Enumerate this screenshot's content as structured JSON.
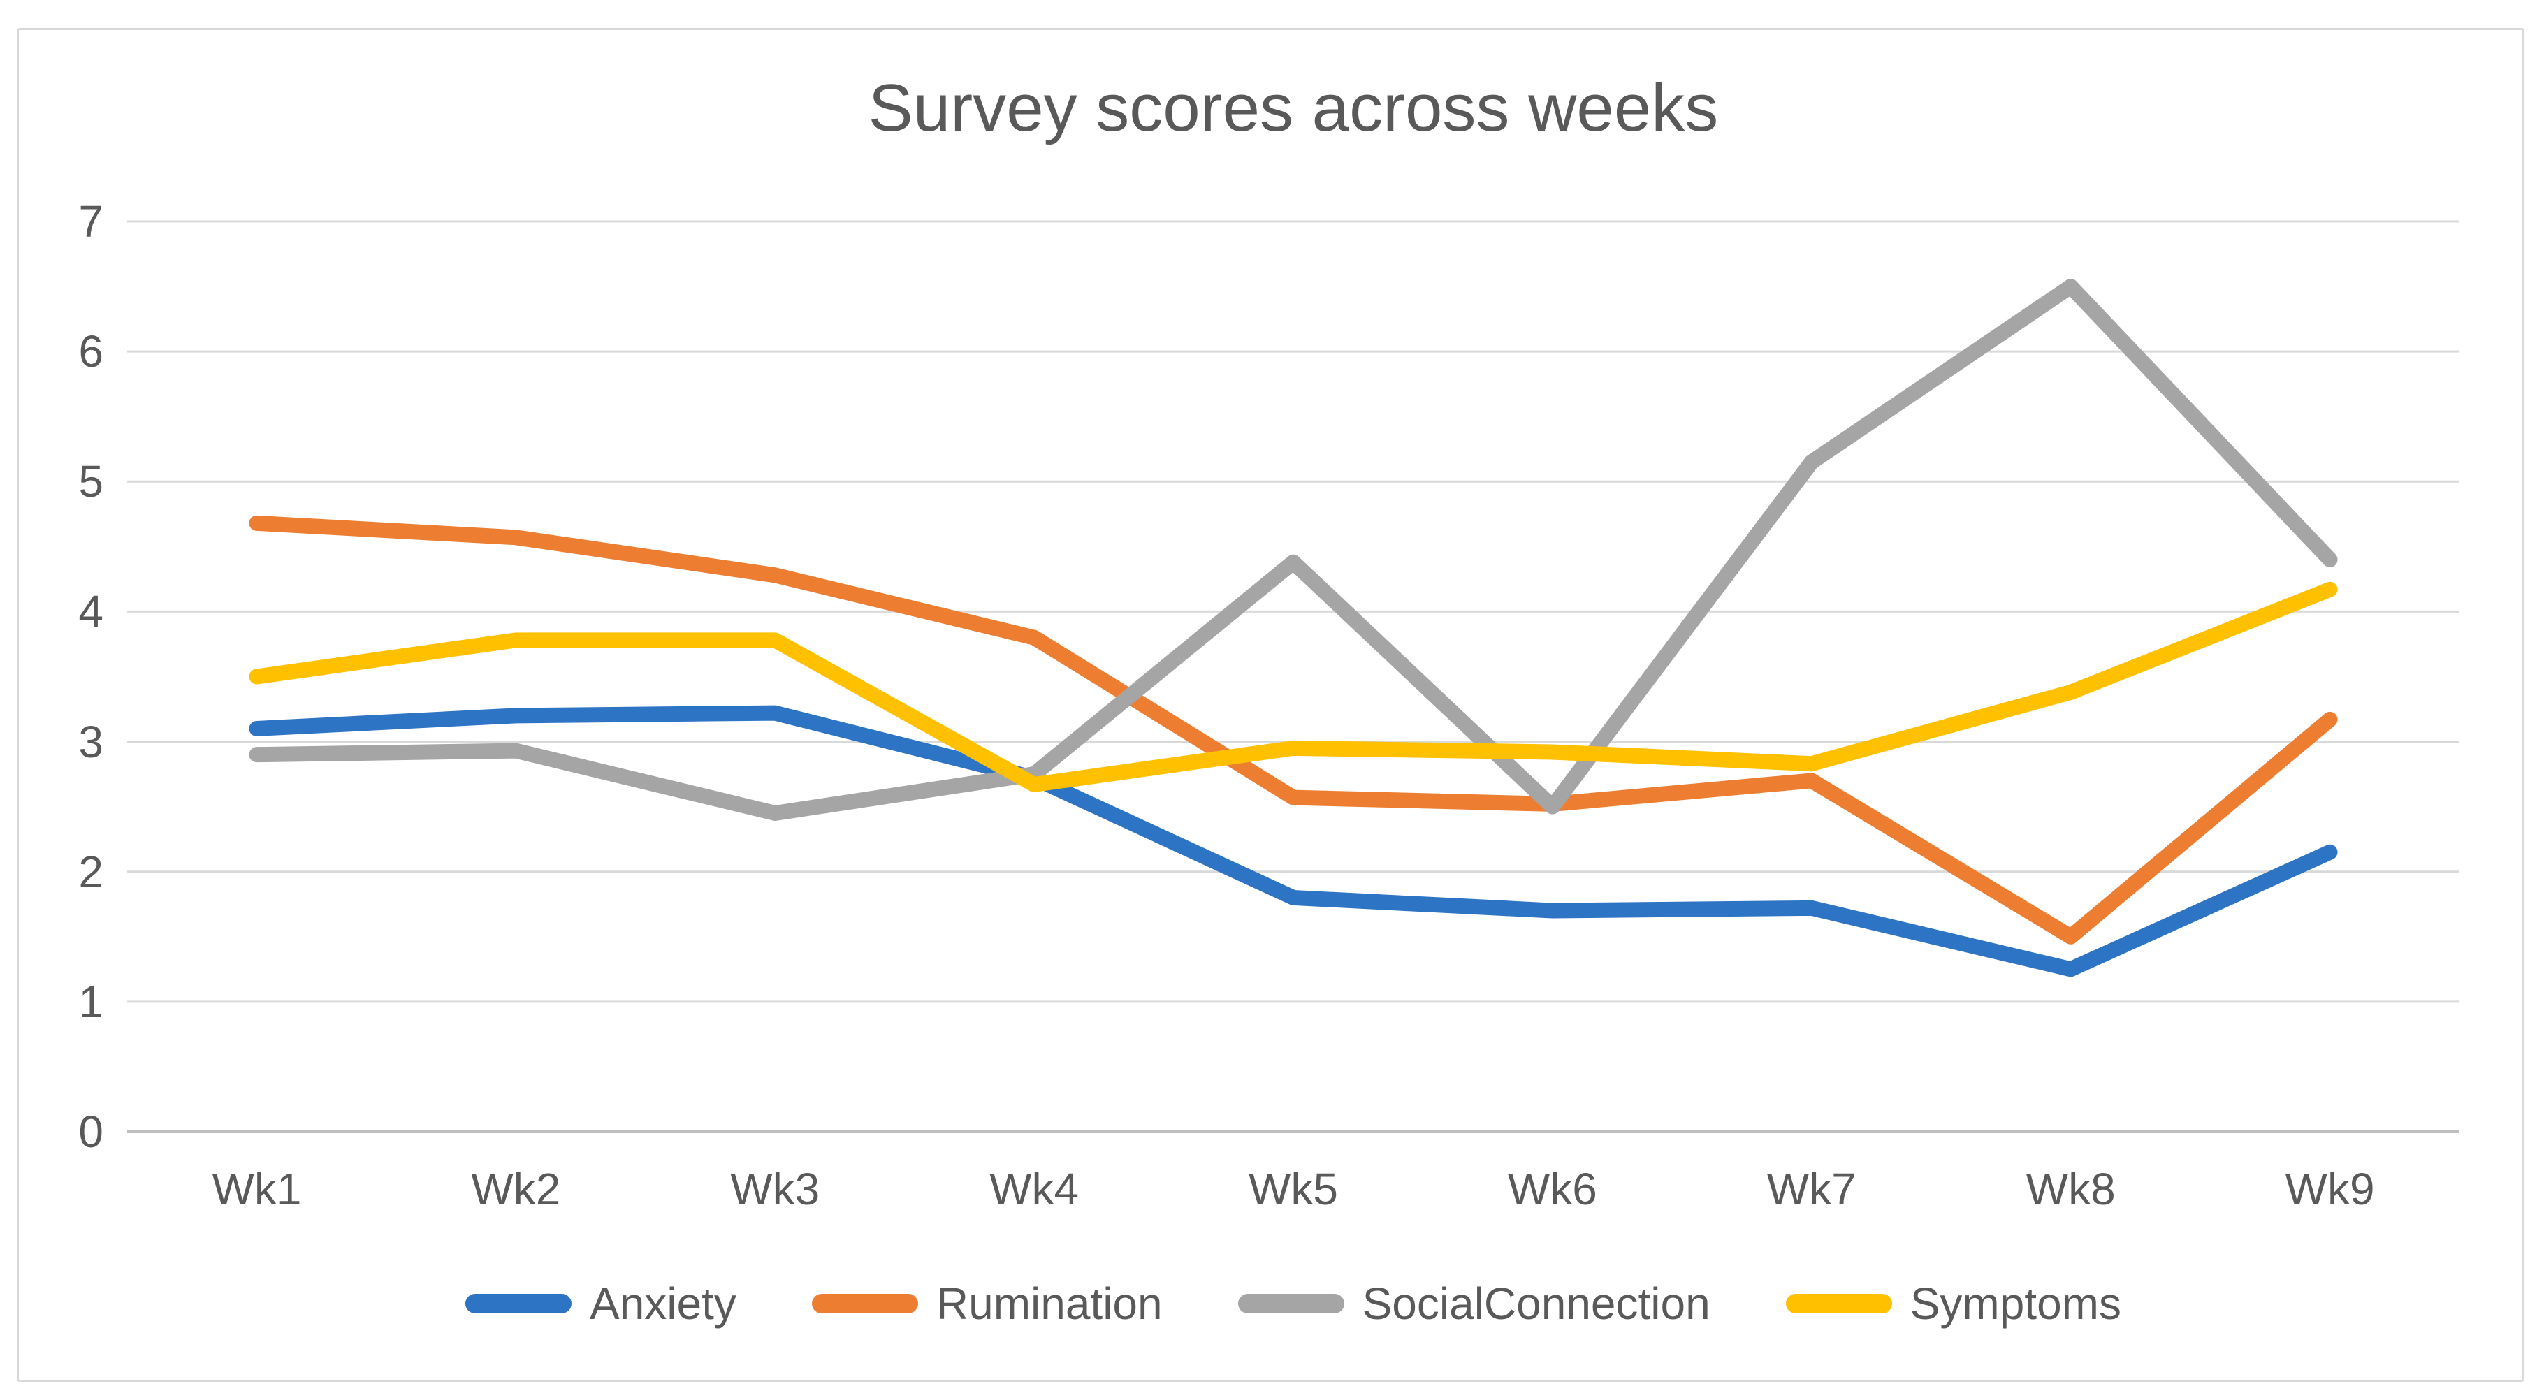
{
  "chart_data": {
    "type": "line",
    "title": "Survey scores across weeks",
    "categories": [
      "Wk1",
      "Wk2",
      "Wk3",
      "Wk4",
      "Wk5",
      "Wk6",
      "Wk7",
      "Wk8",
      "Wk9"
    ],
    "series": [
      {
        "name": "Anxiety",
        "color": "#2E74C4",
        "values": [
          3.1,
          3.2,
          3.22,
          2.72,
          1.8,
          1.7,
          1.72,
          1.25,
          2.15
        ]
      },
      {
        "name": "Rumination",
        "color": "#ED7D31",
        "values": [
          4.68,
          4.57,
          4.28,
          3.8,
          2.57,
          2.52,
          2.7,
          1.5,
          3.17
        ]
      },
      {
        "name": "SocialConnection",
        "color": "#A5A5A5",
        "values": [
          2.9,
          2.93,
          2.45,
          2.75,
          4.38,
          2.5,
          5.15,
          6.5,
          4.4
        ]
      },
      {
        "name": "Symptoms",
        "color": "#FFC000",
        "values": [
          3.5,
          3.78,
          3.78,
          2.67,
          2.95,
          2.92,
          2.83,
          3.38,
          4.17
        ]
      }
    ],
    "ylim": [
      0,
      7
    ],
    "yticks": [
      0,
      1,
      2,
      3,
      4,
      5,
      6,
      7
    ],
    "grid": true,
    "legend_position": "bottom",
    "colors": {
      "text": "#595959",
      "gridline": "#D9D9D9",
      "axis_line": "#BFBFBF",
      "background": "#FFFFFF",
      "border": "#D9D9D9"
    }
  }
}
